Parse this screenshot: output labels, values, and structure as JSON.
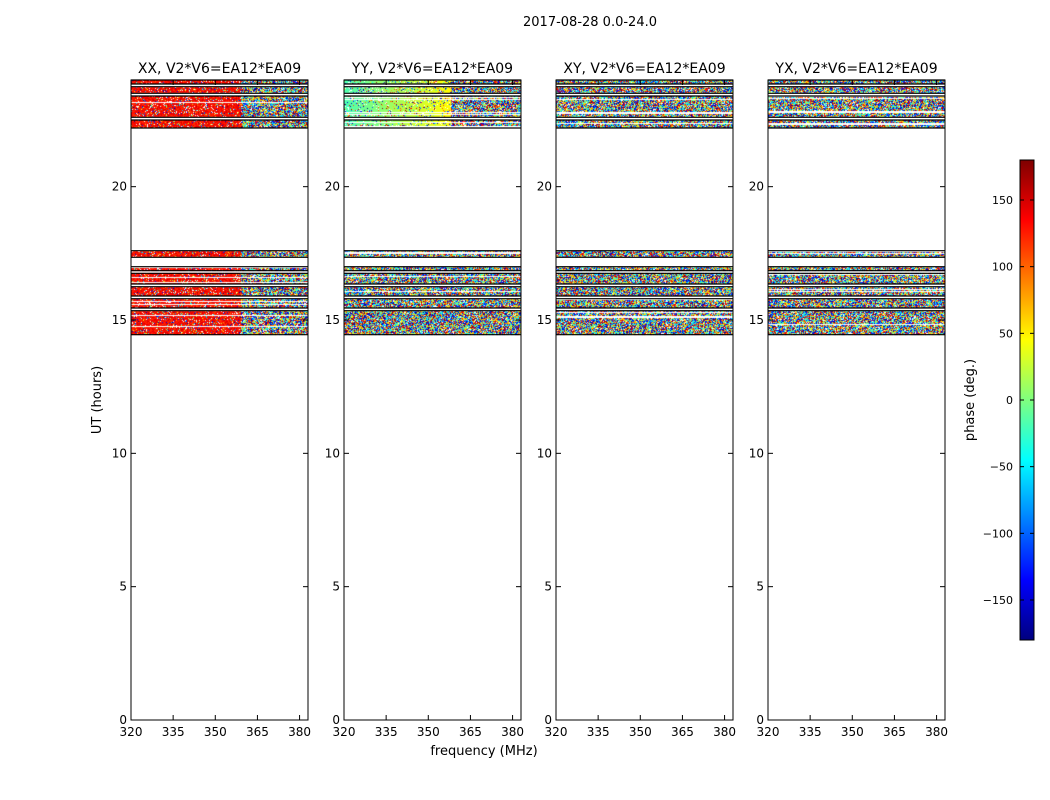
{
  "figure": {
    "suptitle": "2017-08-28 0.0-24.0",
    "ylabel": "UT (hours)",
    "xlabel": "frequency (MHz)"
  },
  "colorbar": {
    "label": "phase (deg.)",
    "range": [
      -180,
      180
    ],
    "ticks": [
      150,
      100,
      50,
      0,
      -50,
      -100,
      -150
    ],
    "tick_labels": [
      "150",
      "100",
      "50",
      "0",
      "−50",
      "−100",
      "−150"
    ],
    "colors": [
      "#00007f",
      "#0000ff",
      "#007fff",
      "#00ffff",
      "#7fff7f",
      "#ffff00",
      "#ff7f00",
      "#ff0000",
      "#7f0000"
    ]
  },
  "chart_data": {
    "type": "heatmap",
    "x_range": [
      320,
      383
    ],
    "x_ticks": [
      320,
      335,
      350,
      365,
      380
    ],
    "x_tick_labels": [
      "320",
      "335",
      "350",
      "365",
      "380"
    ],
    "y_range": [
      0,
      24
    ],
    "y_ticks": [
      0,
      5,
      10,
      15,
      20
    ],
    "y_tick_labels": [
      "0",
      "5",
      "10",
      "15",
      "20"
    ],
    "panels": [
      {
        "title": "XX, V2*V6=EA12*EA09",
        "mode": "red",
        "bands": [
          [
            14.45,
            15.35
          ],
          [
            15.45,
            15.8
          ],
          [
            15.9,
            16.25
          ],
          [
            16.35,
            16.75
          ],
          [
            16.85,
            17.0
          ],
          [
            17.35,
            17.6
          ],
          [
            22.2,
            22.5
          ],
          [
            22.6,
            23.4
          ],
          [
            23.5,
            23.75
          ],
          [
            23.85,
            24.0
          ]
        ]
      },
      {
        "title": "YY, V2*V6=EA12*EA09",
        "mode": "green",
        "bands": [
          [
            14.45,
            15.35
          ],
          [
            15.45,
            15.8
          ],
          [
            15.9,
            16.25
          ],
          [
            16.35,
            16.75
          ],
          [
            16.85,
            17.0
          ],
          [
            17.35,
            17.6
          ],
          [
            22.2,
            22.5
          ],
          [
            22.6,
            23.4
          ],
          [
            23.5,
            23.75
          ],
          [
            23.85,
            24.0
          ]
        ]
      },
      {
        "title": "XY, V2*V6=EA12*EA09",
        "mode": "noise",
        "bands": [
          [
            14.45,
            15.35
          ],
          [
            15.45,
            15.8
          ],
          [
            15.9,
            16.25
          ],
          [
            16.35,
            16.75
          ],
          [
            16.85,
            17.0
          ],
          [
            17.35,
            17.6
          ],
          [
            22.2,
            22.5
          ],
          [
            22.6,
            23.4
          ],
          [
            23.5,
            23.75
          ],
          [
            23.85,
            24.0
          ]
        ]
      },
      {
        "title": "YX, V2*V6=EA12*EA09",
        "mode": "noise",
        "bands": [
          [
            14.45,
            15.35
          ],
          [
            15.45,
            15.8
          ],
          [
            15.9,
            16.25
          ],
          [
            16.35,
            16.75
          ],
          [
            16.85,
            17.0
          ],
          [
            17.35,
            17.6
          ],
          [
            22.2,
            22.5
          ],
          [
            22.6,
            23.4
          ],
          [
            23.5,
            23.75
          ],
          [
            23.85,
            24.0
          ]
        ]
      }
    ]
  }
}
